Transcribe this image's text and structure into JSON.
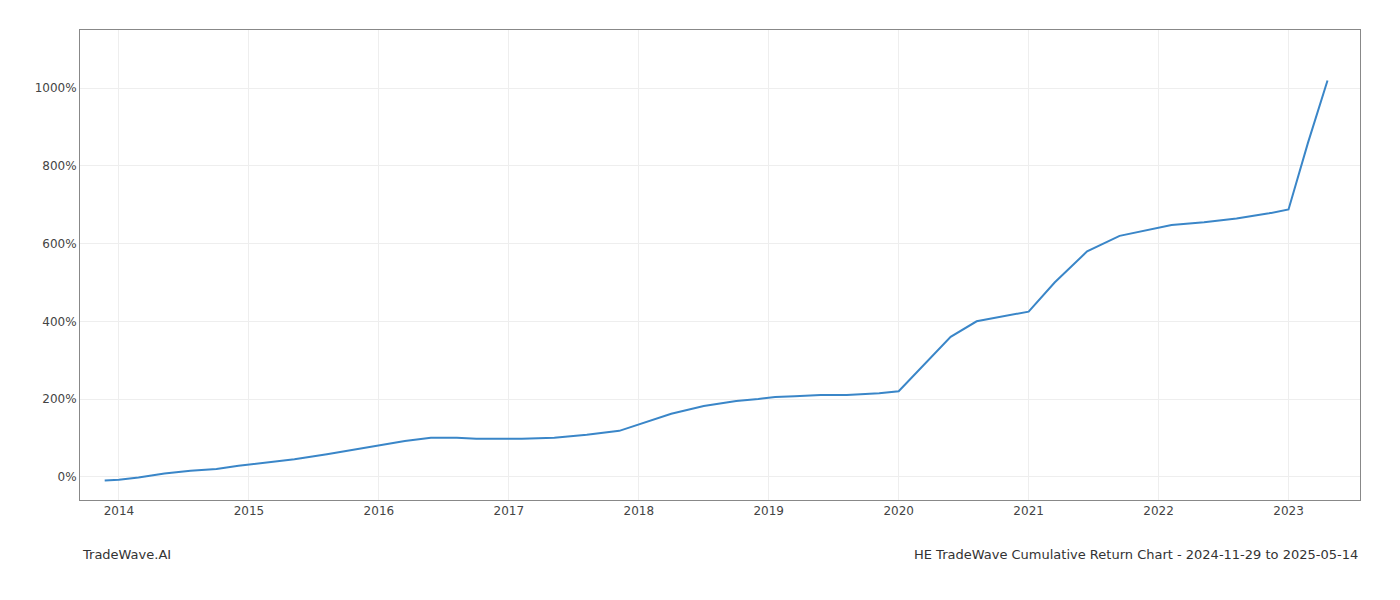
{
  "chart_data": {
    "type": "line",
    "title": "HE TradeWave Cumulative Return Chart - 2024-11-29 to 2025-05-14",
    "annotations": [
      "TradeWave.AI"
    ],
    "color": "#3a86c8",
    "x": [
      2013.89,
      2014.0,
      2014.15,
      2014.35,
      2014.55,
      2014.75,
      2014.92,
      2015.1,
      2015.35,
      2015.6,
      2015.85,
      2016.05,
      2016.2,
      2016.4,
      2016.6,
      2016.75,
      2016.92,
      2017.1,
      2017.35,
      2017.6,
      2017.85,
      2018.05,
      2018.25,
      2018.5,
      2018.75,
      2018.92,
      2019.05,
      2019.2,
      2019.4,
      2019.6,
      2019.85,
      2020.0,
      2020.2,
      2020.4,
      2020.6,
      2020.85,
      2021.0,
      2021.2,
      2021.45,
      2021.7,
      2021.92,
      2022.1,
      2022.35,
      2022.6,
      2022.85,
      2023.0,
      2023.15,
      2023.3
    ],
    "values": [
      -10,
      -8,
      -2,
      8,
      15,
      20,
      28,
      35,
      45,
      58,
      72,
      82,
      92,
      100,
      100,
      98,
      98,
      98,
      100,
      108,
      118,
      140,
      162,
      182,
      195,
      200,
      205,
      207,
      210,
      210,
      215,
      220,
      290,
      360,
      400,
      415,
      425,
      500,
      580,
      620,
      635,
      648,
      655,
      665,
      678,
      688,
      860,
      1020
    ],
    "xlim": [
      2013.7,
      2023.55
    ],
    "ylim": [
      -60,
      1150
    ],
    "xticks": [
      2014,
      2015,
      2016,
      2017,
      2018,
      2019,
      2020,
      2021,
      2022,
      2023
    ],
    "yticks": [
      {
        "value": 0,
        "label": "0%"
      },
      {
        "value": 200,
        "label": "200%"
      },
      {
        "value": 400,
        "label": "400%"
      },
      {
        "value": 600,
        "label": "600%"
      },
      {
        "value": 800,
        "label": "800%"
      },
      {
        "value": 1000,
        "label": "1000%"
      }
    ],
    "grid": true
  }
}
